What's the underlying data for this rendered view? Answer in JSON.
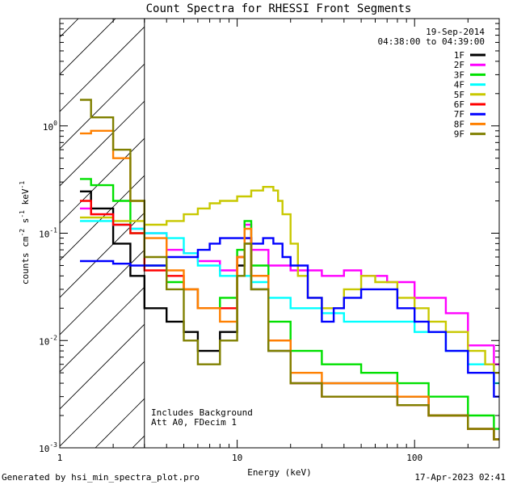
{
  "chart_data": {
    "type": "line",
    "title": "Count Spectra for RHESSI Front Segments",
    "xlabel": "Energy (keV)",
    "ylabel_parts": [
      "counts cm",
      "-2",
      " s",
      "-1",
      " keV",
      "-1"
    ],
    "xscale": "log",
    "yscale": "log",
    "xlim": [
      1,
      300
    ],
    "ylim": [
      0.001,
      10
    ],
    "xticks": [
      {
        "value": 1,
        "label": "1"
      },
      {
        "value": 10,
        "label": "10"
      },
      {
        "value": 100,
        "label": "100"
      }
    ],
    "yticks": [
      {
        "exp": "0",
        "value": 1
      },
      {
        "exp": "-1",
        "value": 0.1
      },
      {
        "exp": "-2",
        "value": 0.01
      },
      {
        "exp": "-3",
        "value": 0.001
      }
    ],
    "hatched_region_max_energy": 3,
    "date": "19-Sep-2014",
    "time_range": "04:38:00 to 04:39:00",
    "annotations": [
      "Includes Background",
      "Att A0, FDecim 1"
    ],
    "footer_left": "Generated by hsi_min_spectra_plot.pro",
    "footer_right": "17-Apr-2023 02:41",
    "series": [
      {
        "name": "1F",
        "color": "#000000",
        "x": [
          1.3,
          1.5,
          2.0,
          2.5,
          3.0,
          4.0,
          5.0,
          6.0,
          8.0,
          10.0,
          11.0,
          12.0,
          15.0,
          20.0,
          30.0,
          50.0,
          80.0,
          120.0,
          200.0,
          280.0
        ],
        "values": [
          0.245,
          0.17,
          0.08,
          0.04,
          0.02,
          0.015,
          0.012,
          0.008,
          0.012,
          0.05,
          0.08,
          0.03,
          0.008,
          0.004,
          0.004,
          0.004,
          0.003,
          0.002,
          0.0015,
          0.0012
        ]
      },
      {
        "name": "2F",
        "color": "#ff00ff",
        "x": [
          1.3,
          1.5,
          2.0,
          2.5,
          3.0,
          4.0,
          5.0,
          6.0,
          8.0,
          10.0,
          11.0,
          12.0,
          15.0,
          20.0,
          30.0,
          40.0,
          50.0,
          70.0,
          100.0,
          150.0,
          200.0,
          280.0
        ],
        "values": [
          0.17,
          0.15,
          0.12,
          0.11,
          0.1,
          0.07,
          0.065,
          0.055,
          0.045,
          0.06,
          0.12,
          0.07,
          0.05,
          0.045,
          0.04,
          0.045,
          0.04,
          0.035,
          0.025,
          0.018,
          0.009,
          0.006
        ]
      },
      {
        "name": "3F",
        "color": "#00e000",
        "x": [
          1.3,
          1.5,
          2.0,
          2.5,
          3.0,
          4.0,
          5.0,
          6.0,
          8.0,
          10.0,
          11.0,
          12.0,
          15.0,
          20.0,
          30.0,
          50.0,
          80.0,
          120.0,
          200.0,
          280.0
        ],
        "values": [
          0.32,
          0.28,
          0.2,
          0.1,
          0.05,
          0.035,
          0.03,
          0.02,
          0.025,
          0.07,
          0.13,
          0.05,
          0.015,
          0.008,
          0.006,
          0.005,
          0.004,
          0.003,
          0.002,
          0.0015
        ]
      },
      {
        "name": "4F",
        "color": "#00ffff",
        "x": [
          1.3,
          1.5,
          2.0,
          2.5,
          3.0,
          4.0,
          5.0,
          6.0,
          8.0,
          10.0,
          12.0,
          15.0,
          20.0,
          30.0,
          40.0,
          50.0,
          70.0,
          100.0,
          150.0,
          200.0,
          280.0
        ],
        "values": [
          0.13,
          0.13,
          0.12,
          0.11,
          0.1,
          0.09,
          0.065,
          0.05,
          0.04,
          0.04,
          0.035,
          0.025,
          0.02,
          0.018,
          0.015,
          0.015,
          0.015,
          0.012,
          0.008,
          0.006,
          0.004
        ]
      },
      {
        "name": "5F",
        "color": "#c8c800",
        "x": [
          1.3,
          2.0,
          3.0,
          4.0,
          5.0,
          6.0,
          7.0,
          8.0,
          10.0,
          12.0,
          14.0,
          16.0,
          17.0,
          18.0,
          20.0,
          22.0,
          25.0,
          30.0,
          35.0,
          40.0,
          50.0,
          60.0,
          80.0,
          100.0,
          120.0,
          150.0,
          200.0,
          250.0,
          280.0
        ],
        "values": [
          0.14,
          0.13,
          0.12,
          0.13,
          0.15,
          0.17,
          0.19,
          0.2,
          0.22,
          0.25,
          0.27,
          0.25,
          0.2,
          0.15,
          0.08,
          0.04,
          0.025,
          0.02,
          0.02,
          0.03,
          0.04,
          0.035,
          0.025,
          0.02,
          0.015,
          0.012,
          0.008,
          0.006,
          0.005
        ]
      },
      {
        "name": "6F",
        "color": "#ff0000",
        "x": [
          1.3,
          1.5,
          2.0,
          2.5,
          3.0,
          4.0,
          5.0,
          6.0,
          8.0,
          10.0,
          11.0,
          12.0,
          15.0,
          20.0,
          30.0,
          50.0,
          80.0,
          120.0,
          200.0,
          280.0
        ],
        "values": [
          0.2,
          0.15,
          0.12,
          0.1,
          0.045,
          0.04,
          0.03,
          0.02,
          0.02,
          0.06,
          0.09,
          0.04,
          0.01,
          0.004,
          0.003,
          0.003,
          0.0025,
          0.002,
          0.0015,
          0.0012
        ]
      },
      {
        "name": "7F",
        "color": "#0000ff",
        "x": [
          1.3,
          2.0,
          2.5,
          3.0,
          4.0,
          5.0,
          6.0,
          7.0,
          8.0,
          10.0,
          12.0,
          14.0,
          16.0,
          18.0,
          20.0,
          25.0,
          30.0,
          35.0,
          40.0,
          50.0,
          60.0,
          80.0,
          100.0,
          120.0,
          150.0,
          200.0,
          280.0
        ],
        "values": [
          0.055,
          0.052,
          0.05,
          0.05,
          0.06,
          0.06,
          0.07,
          0.08,
          0.09,
          0.09,
          0.08,
          0.09,
          0.08,
          0.06,
          0.05,
          0.025,
          0.015,
          0.02,
          0.025,
          0.03,
          0.03,
          0.02,
          0.015,
          0.012,
          0.008,
          0.005,
          0.003
        ]
      },
      {
        "name": "8F",
        "color": "#ff8000",
        "x": [
          1.3,
          1.5,
          2.0,
          2.5,
          3.0,
          4.0,
          5.0,
          6.0,
          8.0,
          10.0,
          11.0,
          12.0,
          15.0,
          20.0,
          30.0,
          50.0,
          80.0,
          120.0,
          200.0,
          280.0
        ],
        "values": [
          0.85,
          0.9,
          0.5,
          0.2,
          0.09,
          0.045,
          0.03,
          0.02,
          0.015,
          0.06,
          0.11,
          0.04,
          0.01,
          0.005,
          0.004,
          0.004,
          0.003,
          0.002,
          0.0015,
          0.0012
        ]
      },
      {
        "name": "9F",
        "color": "#808000",
        "x": [
          1.3,
          1.5,
          2.0,
          2.5,
          3.0,
          4.0,
          5.0,
          6.0,
          8.0,
          10.0,
          11.0,
          12.0,
          15.0,
          20.0,
          30.0,
          50.0,
          80.0,
          120.0,
          200.0,
          280.0
        ],
        "values": [
          1.75,
          1.2,
          0.6,
          0.2,
          0.06,
          0.03,
          0.01,
          0.006,
          0.01,
          0.04,
          0.08,
          0.03,
          0.008,
          0.004,
          0.003,
          0.003,
          0.0025,
          0.002,
          0.0015,
          0.0012
        ]
      }
    ]
  }
}
